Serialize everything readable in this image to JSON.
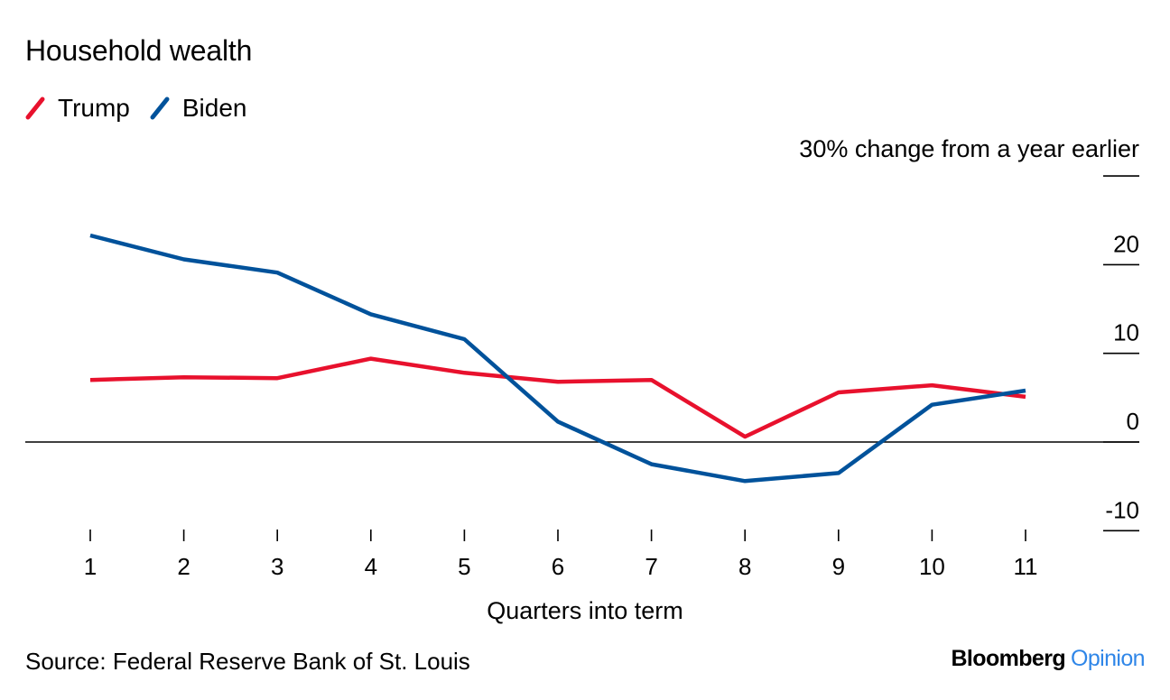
{
  "chart_data": {
    "type": "line",
    "title": "Household wealth",
    "y_unit_label": "30% change from a year earlier",
    "xlabel": "Quarters into term",
    "x": [
      1,
      2,
      3,
      4,
      5,
      6,
      7,
      8,
      9,
      10,
      11
    ],
    "series": [
      {
        "name": "Trump",
        "color": "#e8112d",
        "values": [
          7.0,
          7.3,
          7.2,
          9.4,
          7.8,
          6.8,
          7.0,
          0.6,
          5.6,
          6.4,
          5.1
        ]
      },
      {
        "name": "Biden",
        "color": "#00529b",
        "values": [
          23.3,
          20.6,
          19.1,
          14.4,
          11.6,
          2.3,
          -2.5,
          -4.4,
          -3.5,
          4.2,
          5.8
        ]
      }
    ],
    "ylim": [
      -10,
      30
    ],
    "y_ticks": [
      30,
      20,
      10,
      0,
      -10
    ],
    "y_tick_labels": [
      "",
      "20",
      "10",
      "0",
      "-10"
    ],
    "grid": false,
    "legend_position": "top-left"
  },
  "source": "Source: Federal Reserve Bank of St. Louis",
  "brand": {
    "main": "Bloomberg",
    "sub": "Opinion"
  }
}
